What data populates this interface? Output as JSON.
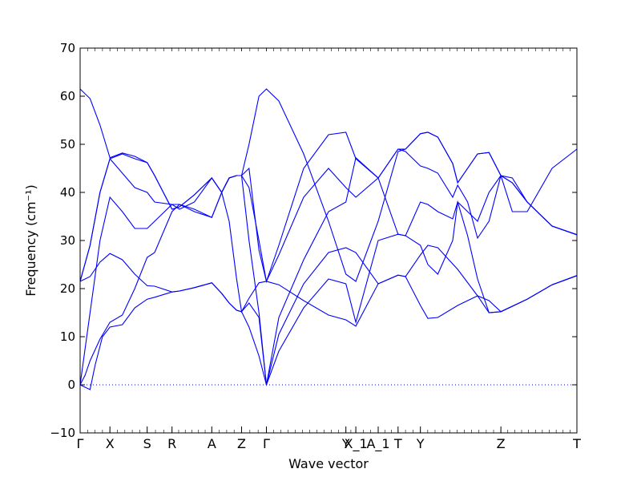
{
  "chart_data": {
    "type": "line",
    "title": "",
    "xlabel": "Wave vector",
    "ylabel": "Frequency (cm⁻¹)",
    "ylim": [
      -10,
      70
    ],
    "yticks": [
      -10,
      0,
      10,
      20,
      30,
      40,
      50,
      60,
      70
    ],
    "xlim": [
      0,
      1
    ],
    "xticks": [
      {
        "label": "Γ",
        "x": 0.0
      },
      {
        "label": "X",
        "x": 0.06
      },
      {
        "label": "S",
        "x": 0.135
      },
      {
        "label": "R",
        "x": 0.185
      },
      {
        "label": "A",
        "x": 0.265
      },
      {
        "label": "Z",
        "x": 0.325
      },
      {
        "label": "Γ",
        "x": 0.375
      },
      {
        "label": "Y",
        "x": 0.535
      },
      {
        "label": "X_1",
        "x": 0.555
      },
      {
        "label": "A_1",
        "x": 0.6
      },
      {
        "label": "T",
        "x": 0.64
      },
      {
        "label": "Y",
        "x": 0.685
      },
      {
        "label": "Z",
        "x": 0.847
      },
      {
        "label": "T",
        "x": 1.0
      }
    ],
    "zero_line": true,
    "series": [
      {
        "points": [
          [
            0,
            61.5
          ],
          [
            0.02,
            59.5
          ],
          [
            0.04,
            54
          ],
          [
            0.06,
            47.2
          ],
          [
            0.085,
            48.2
          ],
          [
            0.11,
            47.5
          ],
          [
            0.135,
            46.2
          ],
          [
            0.15,
            43.5
          ],
          [
            0.185,
            36.5
          ],
          [
            0.2,
            37
          ],
          [
            0.23,
            39.5
          ],
          [
            0.265,
            43
          ],
          [
            0.285,
            40
          ],
          [
            0.3,
            34
          ],
          [
            0.315,
            22
          ],
          [
            0.325,
            15.2
          ],
          [
            0.34,
            18
          ],
          [
            0.36,
            21.2
          ],
          [
            0.375,
            21.5
          ],
          [
            0.4,
            20.8
          ],
          [
            0.45,
            17.5
          ],
          [
            0.5,
            14.5
          ],
          [
            0.535,
            13.5
          ],
          [
            0.555,
            12.2
          ],
          [
            0.6,
            21
          ],
          [
            0.64,
            22.8
          ],
          [
            0.655,
            22.5
          ],
          [
            0.685,
            27
          ],
          [
            0.7,
            29
          ],
          [
            0.72,
            28.5
          ],
          [
            0.76,
            24
          ],
          [
            0.8,
            18.5
          ],
          [
            0.823,
            15
          ],
          [
            0.847,
            15.2
          ],
          [
            0.9,
            17.8
          ],
          [
            0.95,
            20.8
          ],
          [
            1,
            22.7
          ]
        ]
      },
      {
        "points": [
          [
            0,
            21.5
          ],
          [
            0.02,
            22.5
          ],
          [
            0.04,
            25.5
          ],
          [
            0.06,
            27.3
          ],
          [
            0.085,
            26
          ],
          [
            0.11,
            23
          ],
          [
            0.135,
            20.6
          ],
          [
            0.15,
            20.5
          ],
          [
            0.185,
            19.3
          ],
          [
            0.2,
            19.5
          ],
          [
            0.23,
            20.2
          ],
          [
            0.265,
            21.2
          ],
          [
            0.285,
            19
          ],
          [
            0.3,
            17
          ],
          [
            0.315,
            15.5
          ],
          [
            0.325,
            15.2
          ],
          [
            0.34,
            17
          ],
          [
            0.36,
            14
          ],
          [
            0.375,
            0
          ],
          [
            0.4,
            10.5
          ],
          [
            0.45,
            21
          ],
          [
            0.5,
            27.5
          ],
          [
            0.535,
            28.5
          ],
          [
            0.555,
            27.5
          ],
          [
            0.6,
            21
          ],
          [
            0.64,
            22.8
          ],
          [
            0.655,
            22.5
          ],
          [
            0.685,
            16.5
          ],
          [
            0.7,
            13.8
          ],
          [
            0.72,
            14
          ],
          [
            0.76,
            16.5
          ],
          [
            0.8,
            18.5
          ],
          [
            0.823,
            17.5
          ],
          [
            0.847,
            15.2
          ],
          [
            0.9,
            17.8
          ],
          [
            0.95,
            20.8
          ],
          [
            1,
            22.7
          ]
        ]
      },
      {
        "points": [
          [
            0,
            0
          ],
          [
            0.01,
            -0.5
          ],
          [
            0.02,
            -1
          ],
          [
            0.03,
            4
          ],
          [
            0.045,
            10
          ],
          [
            0.06,
            12
          ],
          [
            0.085,
            12.5
          ],
          [
            0.11,
            16
          ],
          [
            0.135,
            17.8
          ],
          [
            0.15,
            18.2
          ],
          [
            0.185,
            19.3
          ],
          [
            0.2,
            19.5
          ],
          [
            0.23,
            20.2
          ],
          [
            0.265,
            21.2
          ],
          [
            0.285,
            19
          ],
          [
            0.3,
            17
          ],
          [
            0.315,
            15.5
          ],
          [
            0.325,
            15.2
          ],
          [
            0.34,
            12
          ],
          [
            0.36,
            6
          ],
          [
            0.375,
            0
          ],
          [
            0.4,
            7
          ],
          [
            0.45,
            16
          ],
          [
            0.5,
            22
          ],
          [
            0.535,
            21
          ],
          [
            0.555,
            13
          ],
          [
            0.6,
            30
          ],
          [
            0.64,
            31.3
          ],
          [
            0.655,
            31
          ],
          [
            0.685,
            38
          ],
          [
            0.7,
            37.5
          ],
          [
            0.72,
            36
          ],
          [
            0.75,
            34.5
          ],
          [
            0.76,
            38
          ],
          [
            0.78,
            31
          ],
          [
            0.8,
            22
          ],
          [
            0.823,
            15
          ],
          [
            0.847,
            15.2
          ],
          [
            0.9,
            17.8
          ],
          [
            0.95,
            20.8
          ],
          [
            1,
            22.7
          ]
        ]
      },
      {
        "points": [
          [
            0,
            0
          ],
          [
            0.01,
            2
          ],
          [
            0.02,
            5
          ],
          [
            0.04,
            9.5
          ],
          [
            0.06,
            13
          ],
          [
            0.085,
            14.5
          ],
          [
            0.11,
            20
          ],
          [
            0.135,
            26.5
          ],
          [
            0.15,
            27.5
          ],
          [
            0.185,
            36
          ],
          [
            0.2,
            37.5
          ],
          [
            0.23,
            36.5
          ],
          [
            0.265,
            34.8
          ],
          [
            0.285,
            40
          ],
          [
            0.3,
            43
          ],
          [
            0.315,
            43.5
          ],
          [
            0.325,
            43.5
          ],
          [
            0.34,
            30
          ],
          [
            0.36,
            15
          ],
          [
            0.375,
            0
          ],
          [
            0.4,
            14
          ],
          [
            0.45,
            26
          ],
          [
            0.5,
            36
          ],
          [
            0.535,
            38
          ],
          [
            0.555,
            47.2
          ],
          [
            0.6,
            43
          ],
          [
            0.64,
            31.3
          ],
          [
            0.655,
            31
          ],
          [
            0.685,
            29
          ],
          [
            0.7,
            25
          ],
          [
            0.72,
            23
          ],
          [
            0.75,
            30
          ],
          [
            0.76,
            38
          ],
          [
            0.78,
            36
          ],
          [
            0.8,
            34
          ],
          [
            0.823,
            40
          ],
          [
            0.847,
            43.5
          ],
          [
            0.87,
            42
          ],
          [
            0.9,
            38
          ],
          [
            0.95,
            33
          ],
          [
            1,
            31.2
          ]
        ]
      },
      {
        "points": [
          [
            0,
            0
          ],
          [
            0.02,
            15
          ],
          [
            0.04,
            30
          ],
          [
            0.06,
            39
          ],
          [
            0.085,
            36
          ],
          [
            0.11,
            32.5
          ],
          [
            0.135,
            32.5
          ],
          [
            0.15,
            34
          ],
          [
            0.185,
            37.5
          ],
          [
            0.2,
            36.5
          ],
          [
            0.23,
            38
          ],
          [
            0.265,
            43
          ],
          [
            0.285,
            40
          ],
          [
            0.3,
            43
          ],
          [
            0.315,
            43.5
          ],
          [
            0.325,
            43.5
          ],
          [
            0.34,
            41
          ],
          [
            0.36,
            30
          ],
          [
            0.375,
            21.5
          ],
          [
            0.4,
            27
          ],
          [
            0.45,
            39
          ],
          [
            0.5,
            45
          ],
          [
            0.535,
            41
          ],
          [
            0.555,
            39
          ],
          [
            0.6,
            43
          ],
          [
            0.64,
            49
          ],
          [
            0.655,
            48.5
          ],
          [
            0.685,
            45.5
          ],
          [
            0.7,
            45
          ],
          [
            0.72,
            44
          ],
          [
            0.75,
            39
          ],
          [
            0.76,
            41.5
          ],
          [
            0.78,
            38
          ],
          [
            0.8,
            30.5
          ],
          [
            0.823,
            34
          ],
          [
            0.847,
            43.5
          ],
          [
            0.87,
            42
          ],
          [
            0.9,
            38
          ],
          [
            0.95,
            33
          ],
          [
            1,
            31.2
          ]
        ]
      },
      {
        "points": [
          [
            0,
            21.5
          ],
          [
            0.02,
            29
          ],
          [
            0.04,
            40
          ],
          [
            0.06,
            47
          ],
          [
            0.085,
            44
          ],
          [
            0.11,
            41
          ],
          [
            0.135,
            40
          ],
          [
            0.15,
            38
          ],
          [
            0.185,
            37.5
          ],
          [
            0.2,
            37.5
          ],
          [
            0.23,
            36
          ],
          [
            0.265,
            34.8
          ],
          [
            0.285,
            40
          ],
          [
            0.3,
            43
          ],
          [
            0.315,
            43.5
          ],
          [
            0.325,
            43.5
          ],
          [
            0.34,
            50
          ],
          [
            0.36,
            60
          ],
          [
            0.375,
            61.5
          ],
          [
            0.4,
            59
          ],
          [
            0.45,
            48
          ],
          [
            0.5,
            34
          ],
          [
            0.535,
            23
          ],
          [
            0.555,
            21.5
          ],
          [
            0.6,
            34
          ],
          [
            0.64,
            48.5
          ],
          [
            0.655,
            49
          ],
          [
            0.685,
            52.2
          ],
          [
            0.7,
            52.5
          ],
          [
            0.72,
            51.5
          ],
          [
            0.75,
            46
          ],
          [
            0.76,
            42
          ],
          [
            0.78,
            45
          ],
          [
            0.8,
            48
          ],
          [
            0.823,
            48.3
          ],
          [
            0.847,
            43.5
          ],
          [
            0.87,
            43
          ],
          [
            0.9,
            38
          ],
          [
            0.95,
            33
          ],
          [
            1,
            31.2
          ]
        ]
      },
      {
        "points": [
          [
            0,
            21.5
          ],
          [
            0.02,
            29
          ],
          [
            0.04,
            40
          ],
          [
            0.06,
            47
          ],
          [
            0.085,
            48
          ],
          [
            0.11,
            47
          ],
          [
            0.135,
            46.2
          ],
          [
            0.15,
            43.5
          ],
          [
            0.185,
            36.5
          ],
          [
            0.2,
            37
          ],
          [
            0.23,
            39.5
          ],
          [
            0.265,
            43
          ],
          [
            0.285,
            40
          ],
          [
            0.3,
            43
          ],
          [
            0.315,
            43.5
          ],
          [
            0.325,
            43.5
          ],
          [
            0.34,
            45
          ],
          [
            0.36,
            28
          ],
          [
            0.375,
            21.5
          ],
          [
            0.4,
            29
          ],
          [
            0.45,
            45
          ],
          [
            0.5,
            52
          ],
          [
            0.535,
            52.5
          ],
          [
            0.555,
            47
          ],
          [
            0.6,
            43
          ],
          [
            0.64,
            49
          ],
          [
            0.655,
            49
          ],
          [
            0.685,
            52.2
          ],
          [
            0.7,
            52.5
          ],
          [
            0.72,
            51.5
          ],
          [
            0.75,
            46
          ],
          [
            0.76,
            42
          ],
          [
            0.78,
            45
          ],
          [
            0.8,
            48
          ],
          [
            0.823,
            48.3
          ],
          [
            0.847,
            43.5
          ],
          [
            0.87,
            36
          ],
          [
            0.9,
            36
          ],
          [
            0.95,
            45
          ],
          [
            1,
            49
          ]
        ]
      }
    ]
  }
}
